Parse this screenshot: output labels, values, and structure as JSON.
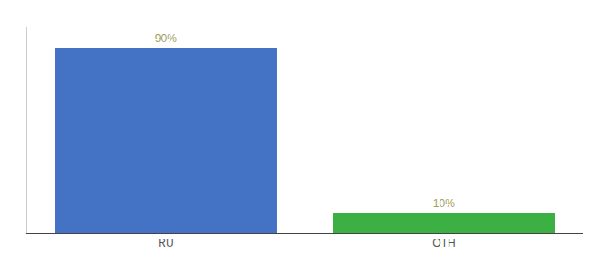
{
  "chart_data": {
    "type": "bar",
    "categories": [
      "RU",
      "OTH"
    ],
    "values": [
      90,
      10
    ],
    "value_labels": [
      "90%",
      "10%"
    ],
    "data_labels": true,
    "colors": [
      "#4472c4",
      "#3cb043"
    ],
    "ylim": [
      0,
      100
    ],
    "tick_labels": "x",
    "grid": false
  }
}
